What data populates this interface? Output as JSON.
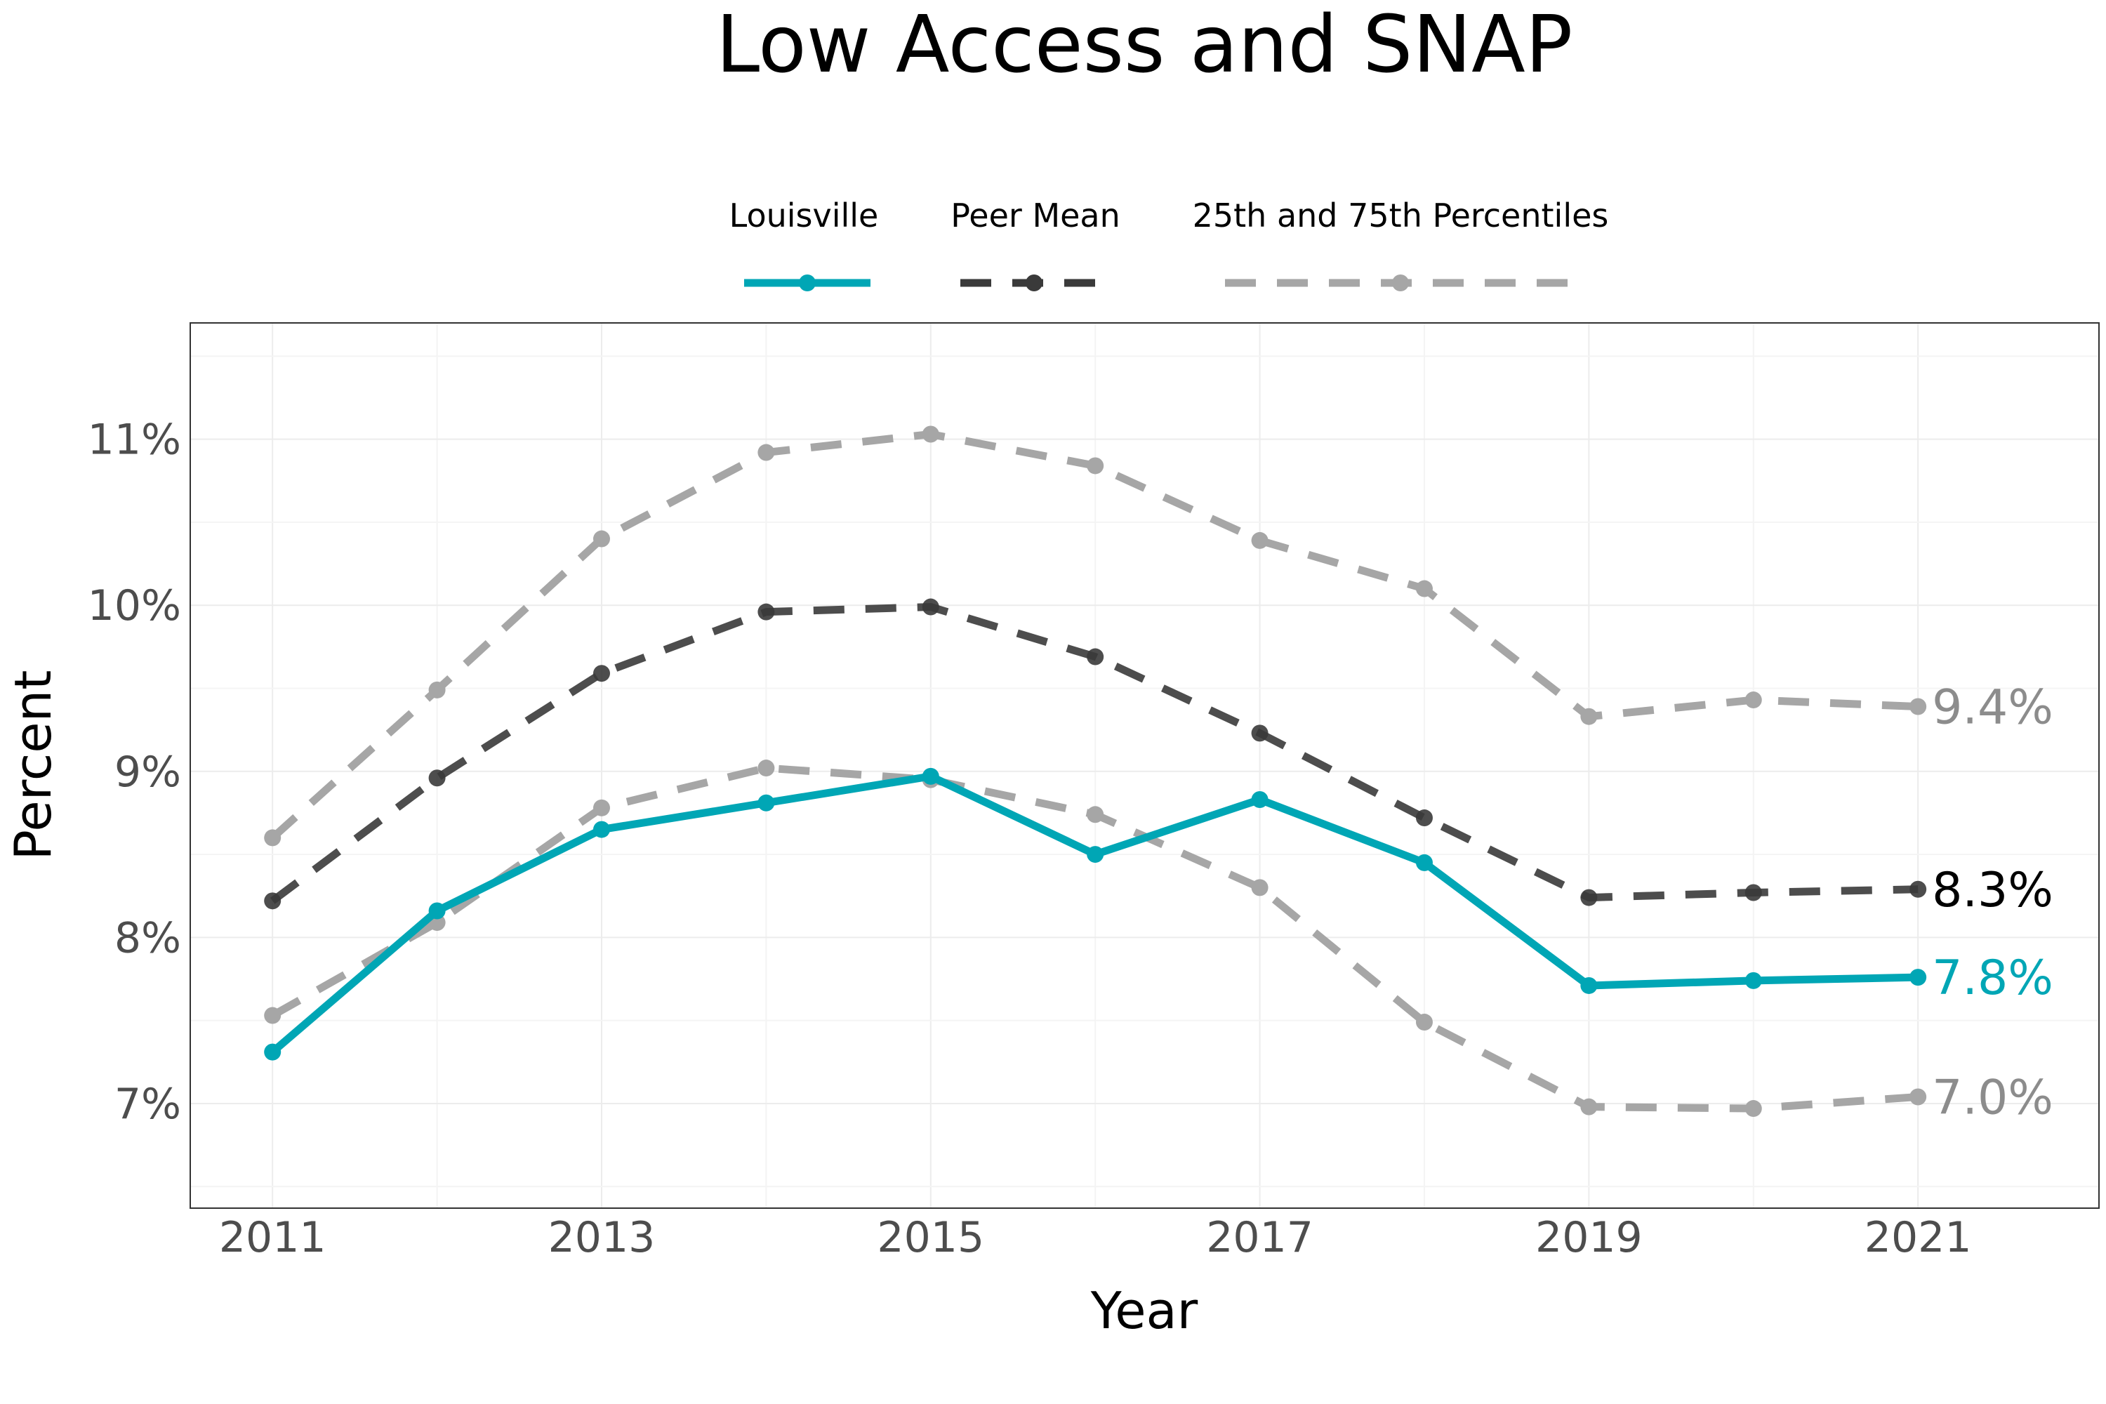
{
  "title": "Low Access and SNAP",
  "legend": {
    "items": [
      {
        "label": "Louisville",
        "color": "#00a6b5",
        "dash": "solid"
      },
      {
        "label": "Peer Mean",
        "color": "#3a3a3a",
        "dash": "dashed"
      },
      {
        "label": "25th and 75th Percentiles",
        "color": "#a6a6a6",
        "dash": "dashed"
      }
    ]
  },
  "chart_data": {
    "type": "line",
    "title": "Low Access and SNAP",
    "xlabel": "Year",
    "ylabel": "Percent",
    "x": [
      2011,
      2012,
      2013,
      2014,
      2015,
      2016,
      2017,
      2018,
      2019,
      2020,
      2021
    ],
    "xticks": [
      2011,
      2013,
      2015,
      2017,
      2019,
      2021
    ],
    "xlim": [
      2010.5,
      2022.1
    ],
    "yticks": [
      7,
      8,
      9,
      10,
      11
    ],
    "ytick_labels": [
      "7%",
      "8%",
      "9%",
      "10%",
      "11%"
    ],
    "ylim": [
      6.37,
      11.7
    ],
    "grid": true,
    "legend_position": "top",
    "series": [
      {
        "name": "Louisville",
        "color": "#00a6b5",
        "dash": "solid",
        "values": [
          7.31,
          8.16,
          8.65,
          8.81,
          8.97,
          8.5,
          8.83,
          8.45,
          7.71,
          7.74,
          7.76
        ],
        "end_label": "7.8%"
      },
      {
        "name": "Peer Mean",
        "color": "#3a3a3a",
        "dash": "dashed",
        "values": [
          8.22,
          8.96,
          9.59,
          9.96,
          9.99,
          9.69,
          9.23,
          8.72,
          8.24,
          8.27,
          8.29
        ],
        "end_label": "8.3%"
      },
      {
        "name": "75th Percentile",
        "color": "#a6a6a6",
        "dash": "dashed",
        "values": [
          8.6,
          9.49,
          10.4,
          10.92,
          11.03,
          10.84,
          10.39,
          10.1,
          9.33,
          9.43,
          9.39
        ],
        "end_label": "9.4%"
      },
      {
        "name": "25th Percentile",
        "color": "#a6a6a6",
        "dash": "dashed",
        "values": [
          7.53,
          8.09,
          8.78,
          9.02,
          8.95,
          8.74,
          8.3,
          7.49,
          6.98,
          6.97,
          7.04
        ],
        "end_label": "7.0%"
      }
    ]
  }
}
